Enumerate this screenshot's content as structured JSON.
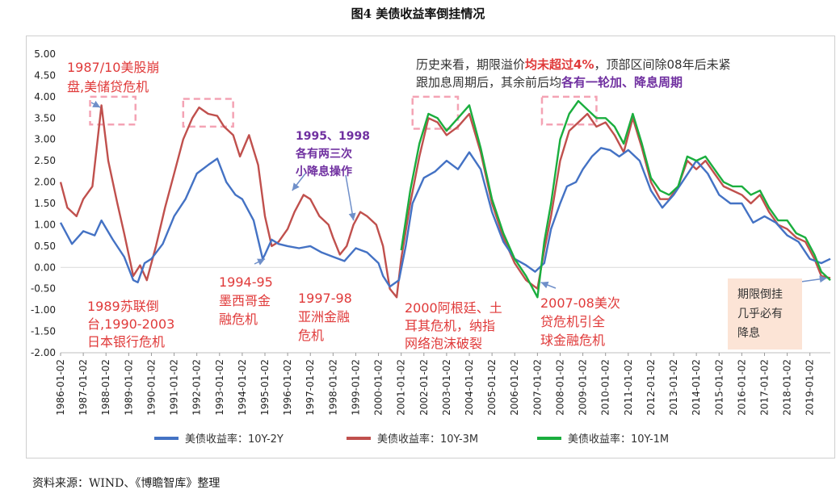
{
  "figure_title": "图4 美债收益率倒挂情况",
  "source": "资料来源：WIND、《博瞻智库》整理",
  "colors": {
    "series_2y": "#4472C4",
    "series_3m": "#C0504D",
    "series_1m": "#1AAE3E",
    "annotation_red": "#E03A3A",
    "annotation_purple": "#7030A0",
    "dashed_box": "#F4A3B4",
    "note_box": "#FCE4D6"
  },
  "chart_data": {
    "type": "line",
    "title": "",
    "xlabel": "",
    "ylabel": "",
    "ylim": [
      -2.0,
      5.0
    ],
    "xlim": [
      1986.0,
      2019.9
    ],
    "grid": false,
    "legend_position": "bottom",
    "y_ticks": [
      "5.00",
      "4.50",
      "4.00",
      "3.50",
      "3.00",
      "2.50",
      "2.00",
      "1.50",
      "1.00",
      "0.50",
      "0.00",
      "-0.50",
      "-1.00",
      "-1.50",
      "-2.00"
    ],
    "x_ticks": [
      "1986-01-02",
      "1987-01-02",
      "1988-01-02",
      "1989-01-02",
      "1990-01-02",
      "1991-01-02",
      "1992-01-02",
      "1993-01-02",
      "1994-01-02",
      "1995-01-02",
      "1996-01-02",
      "1997-01-02",
      "1998-01-02",
      "1999-01-02",
      "2000-01-02",
      "2001-01-02",
      "2002-01-02",
      "2003-01-02",
      "2004-01-02",
      "2005-01-02",
      "2006-01-02",
      "2007-01-02",
      "2008-01-02",
      "2009-01-02",
      "2010-01-02",
      "2011-01-02",
      "2012-01-02",
      "2013-01-02",
      "2014-01-02",
      "2015-01-02",
      "2016-01-02",
      "2017-01-02",
      "2018-01-02",
      "2019-01-02"
    ],
    "series": [
      {
        "name": "美债收益率：10Y-2Y",
        "x": [
          1986.0,
          1986.5,
          1987.0,
          1987.5,
          1987.8,
          1988.3,
          1988.8,
          1989.2,
          1989.4,
          1989.7,
          1990.0,
          1990.5,
          1991.0,
          1991.5,
          1992.0,
          1992.5,
          1992.9,
          1993.3,
          1993.7,
          1994.0,
          1994.5,
          1994.9,
          1995.0,
          1995.3,
          1995.6,
          1996.0,
          1996.5,
          1997.0,
          1997.5,
          1998.0,
          1998.5,
          1999.0,
          1999.5,
          2000.0,
          2000.2,
          2000.5,
          2000.9,
          2001.2,
          2001.5,
          2002.0,
          2002.5,
          2003.0,
          2003.5,
          2004.0,
          2004.5,
          2005.0,
          2005.5,
          2006.0,
          2006.5,
          2006.9,
          2007.3,
          2007.6,
          2008.0,
          2008.3,
          2008.7,
          2009.0,
          2009.4,
          2009.8,
          2010.2,
          2010.6,
          2011.0,
          2011.5,
          2012.0,
          2012.5,
          2013.0,
          2013.5,
          2014.0,
          2014.5,
          2015.0,
          2015.5,
          2016.0,
          2016.5,
          2017.0,
          2017.5,
          2018.0,
          2018.5,
          2019.0,
          2019.5,
          2019.9
        ],
        "y": [
          1.05,
          0.55,
          0.85,
          0.75,
          1.1,
          0.65,
          0.25,
          -0.3,
          -0.35,
          0.1,
          0.2,
          0.55,
          1.2,
          1.6,
          2.2,
          2.4,
          2.55,
          2.0,
          1.7,
          1.6,
          1.1,
          0.2,
          0.3,
          0.65,
          0.55,
          0.5,
          0.45,
          0.5,
          0.35,
          0.25,
          0.15,
          0.45,
          0.35,
          0.1,
          -0.2,
          -0.45,
          -0.3,
          0.5,
          1.5,
          2.1,
          2.25,
          2.5,
          2.3,
          2.7,
          2.3,
          1.3,
          0.6,
          0.2,
          0.05,
          -0.1,
          0.1,
          0.9,
          1.5,
          1.9,
          2.0,
          2.3,
          2.6,
          2.8,
          2.75,
          2.6,
          2.75,
          2.5,
          1.8,
          1.4,
          1.7,
          2.1,
          2.5,
          2.2,
          1.7,
          1.5,
          1.5,
          1.05,
          1.2,
          1.05,
          0.75,
          0.6,
          0.2,
          0.1,
          0.2
        ]
      },
      {
        "name": "美债收益率：10Y-3M",
        "x": [
          1986.0,
          1986.3,
          1986.7,
          1987.0,
          1987.4,
          1987.8,
          1988.1,
          1988.5,
          1988.8,
          1989.2,
          1989.5,
          1989.8,
          1990.2,
          1990.6,
          1991.0,
          1991.4,
          1991.8,
          1992.1,
          1992.5,
          1992.9,
          1993.2,
          1993.6,
          1993.9,
          1994.3,
          1994.7,
          1995.0,
          1995.3,
          1995.6,
          1996.0,
          1996.3,
          1996.7,
          1997.0,
          1997.4,
          1997.8,
          1998.0,
          1998.3,
          1998.6,
          1998.9,
          1999.2,
          1999.5,
          1999.9,
          2000.2,
          2000.5,
          2000.8,
          2001.0,
          2001.4,
          2001.8,
          2002.2,
          2002.6,
          2003.0,
          2003.5,
          2004.0,
          2004.5,
          2005.0,
          2005.5,
          2006.0,
          2006.5,
          2007.0,
          2007.3,
          2007.6,
          2008.0,
          2008.4,
          2008.8,
          2009.2,
          2009.6,
          2010.0,
          2010.4,
          2010.8,
          2011.2,
          2011.6,
          2012.0,
          2012.4,
          2012.8,
          2013.2,
          2013.6,
          2014.0,
          2014.4,
          2014.8,
          2015.2,
          2015.6,
          2016.0,
          2016.4,
          2016.8,
          2017.2,
          2017.6,
          2018.0,
          2018.4,
          2018.8,
          2019.2,
          2019.5,
          2019.9
        ],
        "y": [
          2.0,
          1.4,
          1.2,
          1.6,
          1.9,
          3.8,
          2.5,
          1.5,
          0.8,
          -0.2,
          0.05,
          -0.3,
          0.5,
          1.4,
          2.2,
          3.0,
          3.5,
          3.75,
          3.6,
          3.55,
          3.3,
          3.1,
          2.6,
          3.1,
          2.4,
          1.2,
          0.5,
          0.6,
          0.9,
          1.3,
          1.7,
          1.6,
          1.2,
          1.0,
          0.7,
          0.3,
          0.5,
          1.0,
          1.3,
          1.2,
          1.0,
          0.5,
          -0.5,
          -0.7,
          0.2,
          1.5,
          2.6,
          3.5,
          3.4,
          3.1,
          3.3,
          3.6,
          2.7,
          1.5,
          0.7,
          0.1,
          -0.3,
          -0.5,
          0.4,
          1.2,
          2.5,
          3.2,
          3.4,
          3.6,
          3.3,
          3.4,
          3.1,
          2.7,
          3.5,
          2.8,
          2.0,
          1.6,
          1.6,
          1.9,
          2.5,
          2.3,
          2.5,
          2.2,
          1.9,
          1.8,
          1.7,
          1.5,
          1.7,
          1.3,
          1.0,
          0.9,
          0.7,
          0.6,
          0.2,
          -0.2,
          -0.25
        ]
      },
      {
        "name": "美债收益率：10Y-1M",
        "x": [
          2001.0,
          2001.4,
          2001.8,
          2002.2,
          2002.6,
          2003.0,
          2003.5,
          2004.0,
          2004.5,
          2005.0,
          2005.5,
          2006.0,
          2006.5,
          2007.0,
          2007.3,
          2007.6,
          2008.0,
          2008.4,
          2008.8,
          2009.2,
          2009.6,
          2010.0,
          2010.4,
          2010.8,
          2011.2,
          2011.6,
          2012.0,
          2012.4,
          2012.8,
          2013.2,
          2013.6,
          2014.0,
          2014.4,
          2014.8,
          2015.2,
          2015.6,
          2016.0,
          2016.4,
          2016.8,
          2017.2,
          2017.6,
          2018.0,
          2018.4,
          2018.8,
          2019.2,
          2019.5,
          2019.9
        ],
        "y": [
          0.4,
          1.8,
          2.9,
          3.6,
          3.5,
          3.2,
          3.5,
          3.8,
          2.8,
          1.6,
          0.8,
          0.2,
          -0.2,
          -0.7,
          0.6,
          1.5,
          3.0,
          3.6,
          3.9,
          3.7,
          3.5,
          3.5,
          3.3,
          2.9,
          3.6,
          2.9,
          2.1,
          1.8,
          1.7,
          1.9,
          2.6,
          2.5,
          2.6,
          2.3,
          2.0,
          1.9,
          1.9,
          1.7,
          1.8,
          1.4,
          1.1,
          1.1,
          0.8,
          0.7,
          0.3,
          -0.1,
          -0.3
        ]
      }
    ]
  },
  "annotations": {
    "a1987_l1": "1987/10美股崩",
    "a1987_l2": "盘,美储贷危机",
    "a1989_l1": "1989苏联倒",
    "a1989_l2": "台,1990-2003",
    "a1989_l3": "日本银行危机",
    "a1994_l1": "1994-95",
    "a1994_l2": "墨西哥金",
    "a1994_l3": "融危机",
    "a1997_l1": "1997-98",
    "a1997_l2": "亚洲金融",
    "a1997_l3": "危机",
    "a1995_l1": "1995、1998",
    "a1995_l2": "各有两三次",
    "a1995_l3": "小降息操作",
    "a2000_l1": "2000阿根廷、土",
    "a2000_l2": "耳其危机，纳指",
    "a2000_l3": "网络泡沫破裂",
    "a2007_l1": "2007-08美次",
    "a2007_l2": "贷危机引全",
    "a2007_l3": "球金融危机",
    "top_note_l1_a": "历史来看，期限溢价",
    "top_note_l1_b": "均未超过4%",
    "top_note_l1_c": "，顶部区间除08年后未紧",
    "top_note_l2_a": "跟加息周期后，其余前后均",
    "top_note_l2_b": "各有一轮加、降息周期",
    "corner_note_l1": "期限倒挂",
    "corner_note_l2": "几乎必有",
    "corner_note_l3": "降息"
  }
}
